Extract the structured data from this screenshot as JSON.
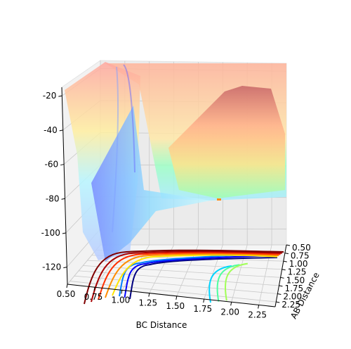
{
  "chart_data": {
    "type": "surface",
    "title": "",
    "xlabel": "BC Distance",
    "ylabel": "AB Distance",
    "zlabel": "",
    "x_ticks": [
      "0.50",
      "0.75",
      "1.00",
      "1.25",
      "1.50",
      "1.75",
      "2.00",
      "2.25"
    ],
    "y_ticks": [
      "0.50",
      "0.75",
      "1.00",
      "1.25",
      "1.50",
      "1.75",
      "2.00",
      "2.25"
    ],
    "z_ticks": [
      "-20",
      "-40",
      "-60",
      "-80",
      "-100",
      "-120"
    ],
    "xlim": [
      0.5,
      2.4
    ],
    "ylim": [
      0.5,
      2.4
    ],
    "zlim": [
      -130,
      -15
    ],
    "colormap": "jet",
    "surface_alpha": 0.5,
    "contour_offset_z": -130,
    "contour_levels": [
      {
        "level": -120,
        "color": "#00007f"
      },
      {
        "level": -110,
        "color": "#0000ff"
      },
      {
        "level": -100,
        "color": "#007fff"
      },
      {
        "level": -90,
        "color": "#00d5ff"
      },
      {
        "level": -80,
        "color": "#4dff9f"
      },
      {
        "level": -70,
        "color": "#a0ff56"
      },
      {
        "level": -60,
        "color": "#ffe500"
      },
      {
        "level": -50,
        "color": "#ff8c00"
      },
      {
        "level": -40,
        "color": "#ff3000"
      },
      {
        "level": -30,
        "color": "#a80000"
      },
      {
        "level": -20,
        "color": "#7f0000"
      }
    ],
    "marker": {
      "label": "trajectory point",
      "color": "#ff8c1a"
    },
    "grid": true
  }
}
